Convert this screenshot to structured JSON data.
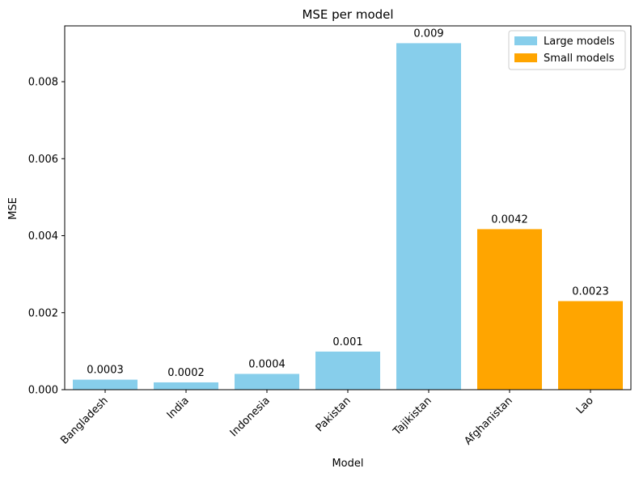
{
  "chart_data": {
    "type": "bar",
    "title": "MSE per model",
    "xlabel": "Model",
    "ylabel": "MSE",
    "categories": [
      "Bangladesh",
      "India",
      "Indonesia",
      "Pakistan",
      "Tajikistan",
      "Afghanistan",
      "Lao"
    ],
    "values": [
      0.00026,
      0.00019,
      0.00041,
      0.00099,
      0.009,
      0.00417,
      0.0023
    ],
    "data_labels": [
      "0.0003",
      "0.0002",
      "0.0004",
      "0.001",
      "0.009",
      "0.0042",
      "0.0023"
    ],
    "groups": [
      "Large models",
      "Large models",
      "Large models",
      "Large models",
      "Large models",
      "Small models",
      "Small models"
    ],
    "ylim": [
      0,
      0.00945
    ],
    "yticks": [
      0,
      0.002,
      0.004,
      0.006,
      0.008
    ],
    "ytick_labels": [
      "0.000",
      "0.002",
      "0.004",
      "0.006",
      "0.008"
    ],
    "grid": false,
    "legend": {
      "placement": "top-right",
      "entries": [
        {
          "label": "Large models",
          "color": "#87ceeb"
        },
        {
          "label": "Small models",
          "color": "#ffa500"
        }
      ]
    }
  }
}
